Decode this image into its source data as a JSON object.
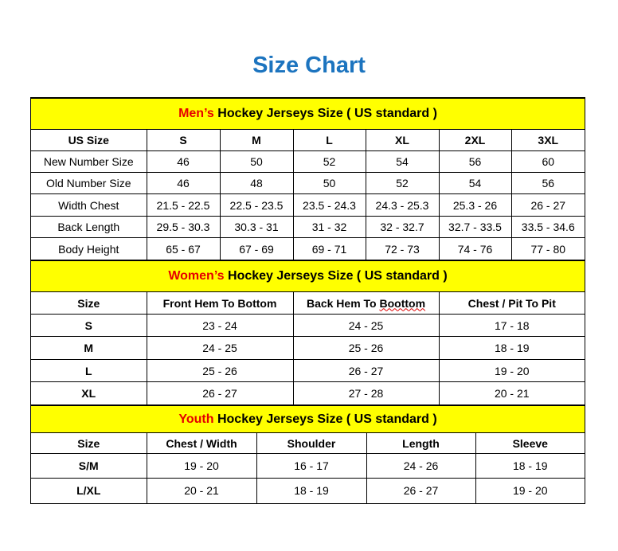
{
  "title": "Size Chart",
  "colors": {
    "title": "#1c74bf",
    "band": "#ffff00",
    "accent": "#e60000"
  },
  "men": {
    "band_accent": "Men’s",
    "band_rest": " Hockey Jerseys Size ( US standard )",
    "headers": [
      "US Size",
      "S",
      "M",
      "L",
      "XL",
      "2XL",
      "3XL"
    ],
    "rows": [
      [
        "New Number Size",
        "46",
        "50",
        "52",
        "54",
        "56",
        "60"
      ],
      [
        "Old Number Size",
        "46",
        "48",
        "50",
        "52",
        "54",
        "56"
      ],
      [
        "Width Chest",
        "21.5 - 22.5",
        "22.5 - 23.5",
        "23.5 - 24.3",
        "24.3 - 25.3",
        "25.3 - 26",
        "26 - 27"
      ],
      [
        "Back Length",
        "29.5 - 30.3",
        "30.3 - 31",
        "31 - 32",
        "32 - 32.7",
        "32.7 - 33.5",
        "33.5 - 34.6"
      ],
      [
        "Body Height",
        "65 - 67",
        "67 - 69",
        "69 - 71",
        "72 - 73",
        "74 - 76",
        "77 - 80"
      ]
    ]
  },
  "women": {
    "band_accent": "Women’s",
    "band_rest": " Hockey Jerseys Size ( US standard )",
    "headers": [
      "Size",
      "Front Hem To Bottom",
      "Back Hem To Boottom",
      "Chest / Pit To Pit"
    ],
    "rows": [
      [
        "S",
        "23 - 24",
        "24 - 25",
        "17 - 18"
      ],
      [
        "M",
        "24 - 25",
        "25 - 26",
        "18 - 19"
      ],
      [
        "L",
        "25 - 26",
        "26 - 27",
        "19 - 20"
      ],
      [
        "XL",
        "26 - 27",
        "27 - 28",
        "20 - 21"
      ]
    ]
  },
  "youth": {
    "band_accent": "Youth",
    "band_rest": " Hockey Jerseys Size ( US standard )",
    "headers": [
      "Size",
      "Chest / Width",
      "Shoulder",
      "Length",
      "Sleeve"
    ],
    "rows": [
      [
        "S/M",
        "19 - 20",
        "16 - 17",
        "24 - 26",
        "18 - 19"
      ],
      [
        "L/XL",
        "20 - 21",
        "18 - 19",
        "26 - 27",
        "19 - 20"
      ]
    ]
  }
}
